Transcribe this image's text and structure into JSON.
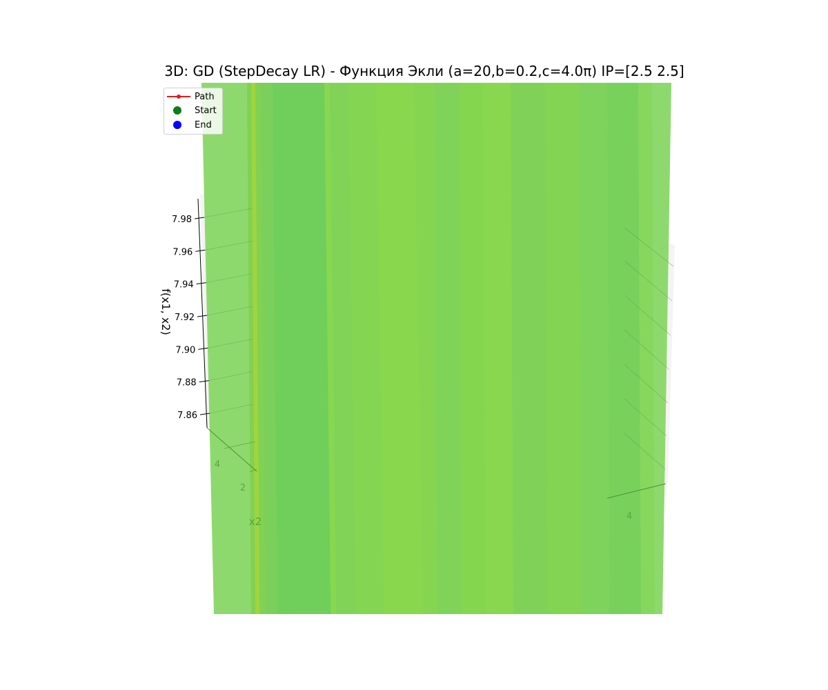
{
  "title": "3D: GD (StepDecay LR) - Функция Экли (a=20,b=0.2,c=4.0π) IP=[2.5 2.5]",
  "colors": {
    "path": "#e41a1c",
    "start": "#0f7d1a",
    "end": "#0a00ff",
    "surface_light": "#8ed96e",
    "surface_mid": "#7fd352",
    "surface_dark": "#6bcb57",
    "axis_green": "#5aa63d"
  },
  "legend": {
    "path": "Path",
    "start": "Start",
    "end": "End"
  },
  "chart_data": {
    "type": "surface3d",
    "title": "3D: GD (StepDecay LR) - Функция Экли (a=20,b=0.2,c=4.0π) IP=[2.5 2.5]",
    "zlabel": "f(x1, x2)",
    "ylabel": "x2",
    "z_ticks": [
      "7.98",
      "7.96",
      "7.94",
      "7.92",
      "7.90",
      "7.88",
      "7.86"
    ],
    "z_tick_values": [
      7.98,
      7.96,
      7.94,
      7.92,
      7.9,
      7.88,
      7.86
    ],
    "y_ticks": [
      "4",
      "2"
    ],
    "x_ticks": [
      "4"
    ],
    "series": [
      {
        "name": "Path",
        "kind": "line"
      },
      {
        "name": "Start",
        "kind": "point"
      },
      {
        "name": "End",
        "kind": "point"
      }
    ],
    "grid": true,
    "legend_position": "upper-left"
  }
}
